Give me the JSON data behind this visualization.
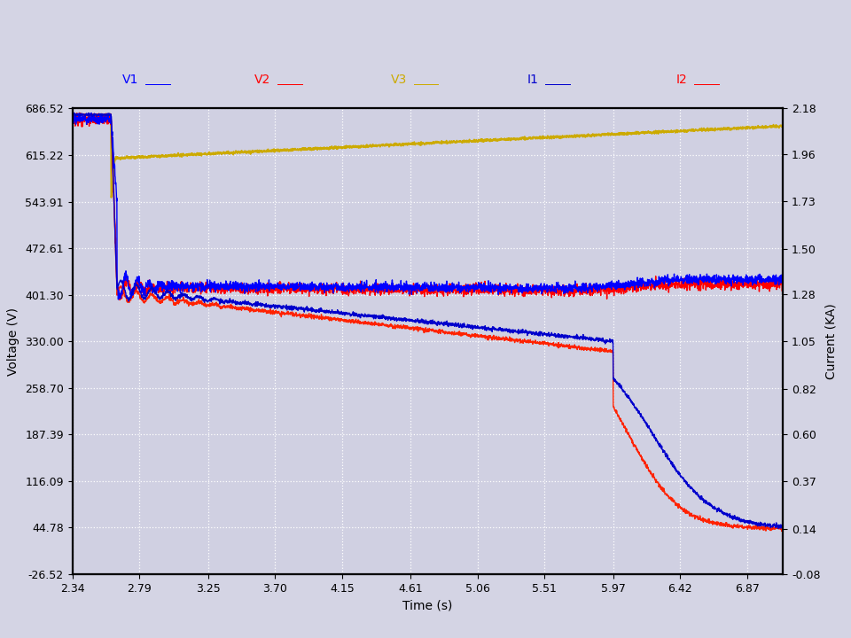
{
  "xlabel": "Time (s)",
  "ylabel_left": "Voltage (V)",
  "ylabel_right": "Current (KA)",
  "xlim": [
    2.34,
    7.11
  ],
  "ylim_left": [
    -26.52,
    686.52
  ],
  "ylim_right": [
    -0.08,
    2.18
  ],
  "xticks": [
    2.34,
    2.79,
    3.25,
    3.7,
    4.15,
    4.61,
    5.06,
    5.51,
    5.97,
    6.42,
    6.87
  ],
  "yticks_left": [
    -26.52,
    44.78,
    116.09,
    187.39,
    258.7,
    330.0,
    401.3,
    472.61,
    543.91,
    615.22,
    686.52
  ],
  "yticks_right": [
    -0.08,
    0.14,
    0.37,
    0.6,
    0.82,
    1.05,
    1.28,
    1.5,
    1.73,
    1.96,
    2.18
  ],
  "bg_color": "#d4d4e4",
  "plot_bg_color": "#d0d0e2",
  "grid_color": "#ffffff",
  "legend_labels": [
    "V1",
    "V2",
    "V3",
    "I1",
    "I2"
  ],
  "legend_colors": [
    "#0000ff",
    "#ff0000",
    "#ccaa00",
    "#0000cc",
    "#ff0000"
  ],
  "V1_color": "#0000ff",
  "V2_color": "#ff0000",
  "V3_color": "#ccaa00",
  "I1_color": "#0000cc",
  "I2_color": "#ff2200",
  "t_start": 2.34,
  "t_end": 7.11,
  "motor_start": 2.6,
  "n_points": 3000
}
